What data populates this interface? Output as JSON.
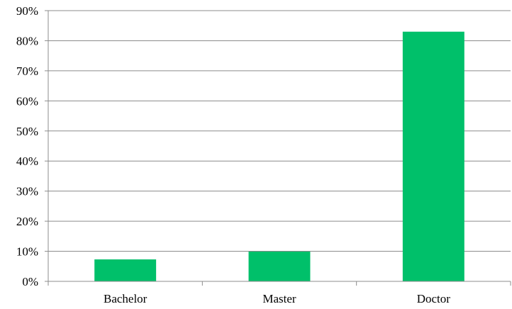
{
  "chart_data": {
    "type": "bar",
    "title": "",
    "xlabel": "",
    "ylabel": "",
    "categories": [
      "Bachelor",
      "Master",
      "Doctor"
    ],
    "series": [
      {
        "values": [
          7.3,
          9.9,
          83.0
        ]
      }
    ],
    "ylim": [
      0,
      90
    ],
    "yticks": [
      "0%",
      "10%",
      "20%",
      "30%",
      "40%",
      "50%",
      "60%",
      "70%",
      "80%",
      "90%"
    ],
    "grid": true,
    "legend": "none",
    "bar_color": "#00c06a"
  }
}
